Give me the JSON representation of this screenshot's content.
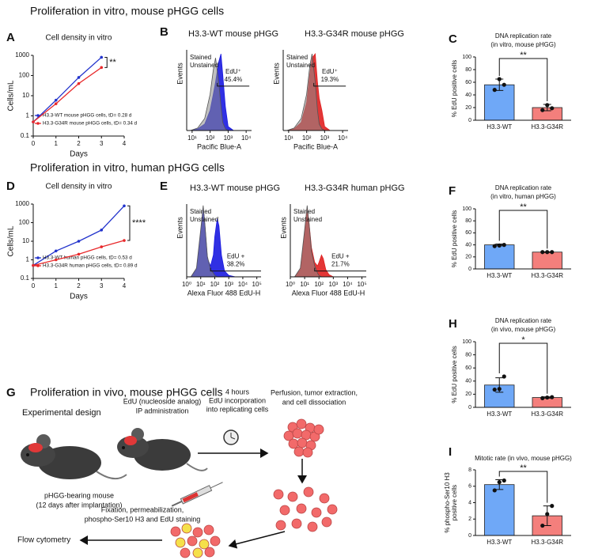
{
  "headings": [
    "Proliferation in vitro, mouse pHGG cells",
    "Proliferation in vitro, human pHGG cells"
  ],
  "chart_data": [
    {
      "type": "line",
      "letter": "A",
      "title": "Cell density in vitro",
      "x_label": "Days",
      "y_label": "Cells/mL",
      "x": [
        0,
        1,
        2,
        3
      ],
      "xlim": [
        0,
        4
      ],
      "xticks": [
        0,
        1,
        2,
        3,
        4
      ],
      "ylim": [
        0.1,
        1000
      ],
      "yticks": [
        0.1,
        1,
        10,
        100,
        1000
      ],
      "log_y": true,
      "series": [
        {
          "name": "H3.3-WT mouse pHGG cells, tD= 0.28 d",
          "color": "#2233cc",
          "values": [
            0.5,
            6,
            80,
            800
          ]
        },
        {
          "name": "H3.3-G34R mouse pHGG cells, tD= 0.34 d",
          "color": "#e8282a",
          "values": [
            0.5,
            4,
            40,
            250
          ]
        }
      ],
      "annotation": "**"
    },
    {
      "type": "area",
      "letter": "B",
      "title": "H3.3-WT mouse pHGG",
      "title_color": "#1a1ae0",
      "x_label": "Pacific Blue-A",
      "y_label": "Events",
      "log_x": true,
      "xlim": [
        5,
        20000
      ],
      "xticks": [
        {
          "value": 10,
          "label": "10¹"
        },
        {
          "value": 100,
          "label": "10²"
        },
        {
          "value": 1000,
          "label": "10³"
        },
        {
          "value": 10000,
          "label": "10⁴"
        }
      ],
      "ylim": [
        0,
        100
      ],
      "x": [
        8,
        20,
        50,
        100,
        150,
        200,
        300,
        400,
        500,
        700,
        1000,
        2000
      ],
      "series": [
        {
          "name": "Stained",
          "color": "#1a1ae0",
          "values": [
            0,
            2,
            8,
            25,
            45,
            60,
            85,
            95,
            70,
            30,
            5,
            0
          ]
        },
        {
          "name": "Unstained",
          "color": "#8a8a8a",
          "values": [
            0,
            3,
            15,
            45,
            75,
            90,
            60,
            30,
            10,
            2,
            0,
            0
          ]
        }
      ],
      "gate": [
        250,
        15000
      ],
      "gate_y": 55,
      "gate_label": "EdU⁺",
      "gate_value": "45.4%"
    },
    {
      "type": "area",
      "title": "H3.3-G34R mouse pHGG",
      "title_color": "#e02020",
      "x_label": "Pacific Blue-A",
      "y_label": "Events",
      "log_x": true,
      "xlim": [
        5,
        20000
      ],
      "xticks": [
        {
          "value": 10,
          "label": "10¹"
        },
        {
          "value": 100,
          "label": "10²"
        },
        {
          "value": 1000,
          "label": "10³"
        },
        {
          "value": 10000,
          "label": "10⁴"
        }
      ],
      "ylim": [
        0,
        100
      ],
      "x": [
        8,
        20,
        50,
        100,
        150,
        200,
        300,
        400,
        500,
        700,
        1000,
        2000
      ],
      "series": [
        {
          "name": "Stained",
          "color": "#e02020",
          "values": [
            0,
            2,
            10,
            35,
            70,
            90,
            95,
            60,
            40,
            25,
            5,
            0
          ]
        },
        {
          "name": "Unstained",
          "color": "#8a8a8a",
          "values": [
            0,
            3,
            15,
            45,
            80,
            95,
            60,
            25,
            8,
            2,
            0,
            0
          ]
        }
      ],
      "gate": [
        250,
        15000
      ],
      "gate_y": 55,
      "gate_label": "EdU⁺",
      "gate_value": "19.3%"
    },
    {
      "type": "bar",
      "letter": "C",
      "title": "DNA replication rate",
      "subtitle": "(in vitro, mouse pHGG)",
      "y_label": [
        "% EdU positive cells"
      ],
      "categories": [
        "H3.3-WT",
        "H3.3-G34R"
      ],
      "colors": [
        "#6fa8f7",
        "#f47f7c"
      ],
      "label_colors": [
        "#1f49d1",
        "#e0312d"
      ],
      "values": [
        56,
        20
      ],
      "errors": [
        9,
        5
      ],
      "points": [
        [
          48,
          65,
          56
        ],
        [
          16,
          24,
          19
        ]
      ],
      "ylim": [
        0,
        100
      ],
      "yticks": [
        0,
        20,
        40,
        60,
        80,
        100
      ],
      "significance": "**"
    },
    {
      "type": "line",
      "letter": "D",
      "title": "Cell density in vitro",
      "x_label": "Days",
      "y_label": "Cells/mL",
      "x": [
        0,
        1,
        2,
        3,
        4
      ],
      "xlim": [
        0,
        4
      ],
      "xticks": [
        0,
        1,
        2,
        3,
        4
      ],
      "ylim": [
        0.1,
        1000
      ],
      "yticks": [
        0.1,
        1,
        10,
        100,
        1000
      ],
      "log_y": true,
      "series": [
        {
          "name": "H3.3-WT human pHGG cells, tD= 0.53 d",
          "color": "#2233cc",
          "values": [
            0.5,
            3,
            10,
            40,
            800
          ]
        },
        {
          "name": "H3.3-G34R human pHGG cells, tD= 0.89 d",
          "color": "#e8282a",
          "values": [
            0.5,
            1,
            2,
            5,
            11
          ]
        }
      ],
      "annotation": "****"
    },
    {
      "type": "area",
      "letter": "E",
      "title": "H3.3-WT mouse pHGG",
      "title_color": "#1a1ae0",
      "x_label": "Alexa Fluor 488 EdU-H",
      "y_label": "Events",
      "log_x": true,
      "xlim": [
        1,
        200000
      ],
      "xticks": [
        {
          "value": 1,
          "label": "10⁰"
        },
        {
          "value": 10,
          "label": "10¹"
        },
        {
          "value": 100,
          "label": "10²"
        },
        {
          "value": 1000,
          "label": "10³"
        },
        {
          "value": 10000,
          "label": "10⁴"
        },
        {
          "value": 100000,
          "label": "10⁵"
        }
      ],
      "ylim": [
        0,
        100
      ],
      "x": [
        2,
        5,
        10,
        15,
        20,
        30,
        50,
        80,
        100,
        150,
        200,
        300,
        500,
        1000,
        3000
      ],
      "series": [
        {
          "name": "Stained",
          "color": "#1a1ae0",
          "values": [
            0,
            10,
            60,
            95,
            70,
            25,
            15,
            30,
            55,
            80,
            70,
            30,
            8,
            2,
            0
          ]
        },
        {
          "name": "Unstained",
          "color": "#8a8a8a",
          "values": [
            0,
            12,
            65,
            98,
            72,
            28,
            10,
            5,
            2,
            0,
            0,
            0,
            0,
            0,
            0
          ]
        }
      ],
      "gate": [
        50,
        200000
      ],
      "gate_y": 8,
      "gate_label": "EdU +",
      "gate_value": "38.2%"
    },
    {
      "type": "area",
      "title": "H3.3-G34R human pHGG",
      "title_color": "#e02020",
      "x_label": "Alexa Fluor 488 EdU-H",
      "y_label": "Events",
      "log_x": true,
      "xlim": [
        1,
        200000
      ],
      "xticks": [
        {
          "value": 1,
          "label": "10⁰"
        },
        {
          "value": 10,
          "label": "10¹"
        },
        {
          "value": 100,
          "label": "10²"
        },
        {
          "value": 1000,
          "label": "10³"
        },
        {
          "value": 10000,
          "label": "10⁴"
        },
        {
          "value": 100000,
          "label": "10⁵"
        }
      ],
      "ylim": [
        0,
        100
      ],
      "x": [
        2,
        5,
        10,
        15,
        20,
        30,
        50,
        80,
        100,
        150,
        200,
        300,
        500,
        1000,
        3000
      ],
      "series": [
        {
          "name": "Stained",
          "color": "#e02020",
          "values": [
            0,
            10,
            60,
            95,
            75,
            40,
            20,
            15,
            20,
            30,
            25,
            10,
            3,
            0,
            0
          ]
        },
        {
          "name": "Unstained",
          "color": "#8a8a8a",
          "values": [
            0,
            12,
            65,
            98,
            75,
            35,
            15,
            5,
            2,
            0,
            0,
            0,
            0,
            0,
            0
          ]
        }
      ],
      "gate": [
        50,
        200000
      ],
      "gate_y": 8,
      "gate_label": "EdU +",
      "gate_value": "21.7%"
    },
    {
      "type": "bar",
      "letter": "F",
      "title": "DNA replication rate",
      "subtitle": "(in vitro, human pHGG)",
      "y_label": [
        "% EdU positive cells"
      ],
      "categories": [
        "H3.3-WT",
        "H3.3-G34R"
      ],
      "colors": [
        "#6fa8f7",
        "#f47f7c"
      ],
      "label_colors": [
        "#1f49d1",
        "#e0312d"
      ],
      "values": [
        40,
        28
      ],
      "errors": [
        1.5,
        0.5
      ],
      "points": [
        [
          38,
          39,
          40
        ],
        [
          28,
          28,
          28
        ]
      ],
      "ylim": [
        0,
        100
      ],
      "yticks": [
        0,
        20,
        40,
        60,
        80,
        100
      ],
      "significance": "**"
    },
    {
      "type": "bar",
      "letter": "H",
      "title": "DNA replication rate",
      "subtitle": "(in vivo, mouse pHGG)",
      "y_label": [
        "% EdU positive cells"
      ],
      "categories": [
        "H3.3-WT",
        "H3.3-G34R"
      ],
      "colors": [
        "#6fa8f7",
        "#f47f7c"
      ],
      "label_colors": [
        "#1f49d1",
        "#e0312d"
      ],
      "values": [
        34,
        15
      ],
      "errors": [
        11,
        1
      ],
      "points": [
        [
          27,
          28,
          47
        ],
        [
          14,
          15,
          15.5
        ]
      ],
      "ylim": [
        0,
        100
      ],
      "yticks": [
        0,
        20,
        40,
        60,
        80,
        100
      ],
      "significance": "*"
    },
    {
      "type": "bar",
      "letter": "I",
      "title": "Mitotic rate (in vivo, mouse pHGG)",
      "y_label": [
        "% phospho-Ser10 H3",
        "positive cells"
      ],
      "categories": [
        "H3.3-WT",
        "H3.3-G34R"
      ],
      "colors": [
        "#6fa8f7",
        "#f47f7c"
      ],
      "label_colors": [
        "#1f49d1",
        "#e0312d"
      ],
      "values": [
        6.2,
        2.4
      ],
      "errors": [
        0.6,
        1.2
      ],
      "points": [
        [
          5.5,
          6.5,
          6.7
        ],
        [
          1.2,
          2.6,
          3.6
        ]
      ],
      "ylim": [
        0,
        8
      ],
      "yticks": [
        0,
        2,
        4,
        6,
        8
      ],
      "significance": "**"
    }
  ],
  "diagram": {
    "letter": "G",
    "heading": "Proliferation in vivo, mouse pHGG cells",
    "subheading": "Experimental design",
    "mouse": [
      "pHGG-bearing mouse",
      "(12 days after implantation)"
    ],
    "injection": [
      "EdU (nucleoside analog)",
      "IP administration"
    ],
    "incubation": [
      "4 hours",
      "EdU incorporation",
      "into replicating cells"
    ],
    "extraction": [
      "Perfusion, tumor extraction,",
      "and cell dissociation"
    ],
    "staining": [
      "Fixation, permeabilization,",
      "phospho-Ser10 H3 and EdU staining"
    ],
    "readout": "Flow cytometry"
  }
}
